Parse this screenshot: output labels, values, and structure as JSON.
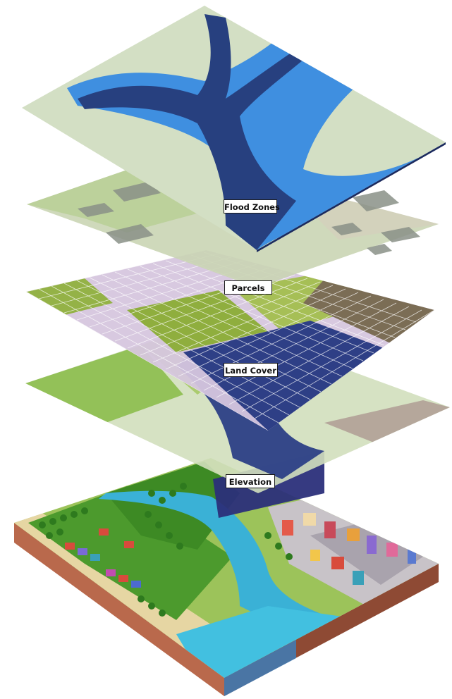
{
  "diagram": {
    "layers": [
      {
        "id": "flood",
        "label": "Flood Zones"
      },
      {
        "id": "parcels",
        "label": "Parcels"
      },
      {
        "id": "landcover",
        "label": "Land Cover"
      },
      {
        "id": "elevation",
        "label": "Elevation"
      }
    ]
  },
  "colors": {
    "land": "#d3dfc4",
    "water_light": "#3f8fe0",
    "water_dark": "#27407f",
    "parcel_plane": "#c9d5b4",
    "parcel_block": "#8a9188",
    "grid_lavender": "#d7c7de",
    "grid_green": "#8fae3e",
    "grid_navy": "#2e3f86",
    "grid_brown": "#7b6d55",
    "grass": "#9cc35a",
    "river_blue": "#3ab1d6",
    "soil": "#b9694c"
  }
}
